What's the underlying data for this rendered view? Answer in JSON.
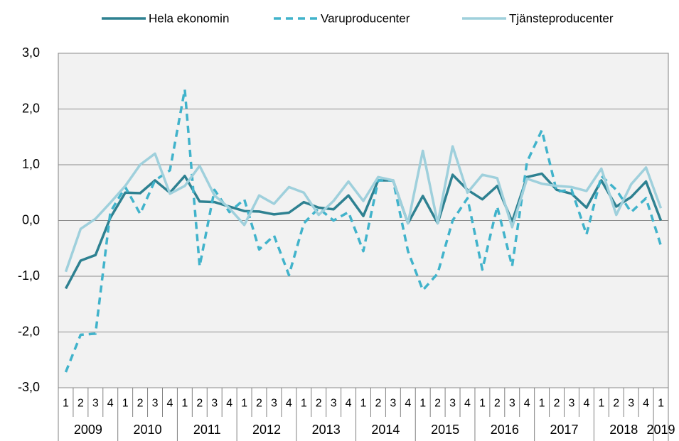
{
  "chart_data": {
    "type": "line",
    "categories": [
      "1",
      "2",
      "3",
      "4",
      "1",
      "2",
      "3",
      "4",
      "1",
      "2",
      "3",
      "4",
      "1",
      "2",
      "3",
      "4",
      "1",
      "2",
      "3",
      "4",
      "1",
      "2",
      "3",
      "4",
      "1",
      "2",
      "3",
      "4",
      "1",
      "2",
      "3",
      "4",
      "1",
      "2",
      "3",
      "4",
      "1",
      "2",
      "3",
      "4",
      "1"
    ],
    "years": [
      "2009",
      "2010",
      "2011",
      "2012",
      "2013",
      "2014",
      "2015",
      "2016",
      "2017",
      "2018",
      "2019"
    ],
    "series": [
      {
        "name": "Hela ekonomin",
        "color": "#2e8191",
        "dash": false,
        "values": [
          -1.22,
          -0.72,
          -0.62,
          0.05,
          0.5,
          0.49,
          0.72,
          0.5,
          0.8,
          0.34,
          0.33,
          0.25,
          0.17,
          0.16,
          0.11,
          0.14,
          0.33,
          0.23,
          0.2,
          0.45,
          0.08,
          0.72,
          0.72,
          -0.05,
          0.44,
          -0.05,
          0.82,
          0.55,
          0.38,
          0.62,
          -0.02,
          0.78,
          0.84,
          0.55,
          0.48,
          0.23,
          0.72,
          0.25,
          0.42,
          0.7,
          0.0
        ]
      },
      {
        "name": "Varuproducenter",
        "color": "#41b3cb",
        "dash": true,
        "values": [
          -2.72,
          -2.05,
          -2.03,
          0.15,
          0.6,
          0.12,
          0.72,
          0.9,
          2.35,
          -0.82,
          0.55,
          0.15,
          0.38,
          -0.52,
          -0.27,
          -0.98,
          -0.05,
          0.22,
          0.0,
          0.15,
          -0.55,
          0.72,
          0.72,
          -0.55,
          -1.25,
          -0.95,
          0.0,
          0.4,
          -0.88,
          0.25,
          -0.82,
          1.05,
          1.62,
          0.52,
          0.55,
          -0.25,
          0.8,
          0.55,
          0.15,
          0.4,
          -0.45
        ]
      },
      {
        "name": "Tjänsteproducenter",
        "color": "#9fd0dc",
        "dash": false,
        "values": [
          -0.92,
          -0.15,
          0.03,
          0.32,
          0.62,
          1.0,
          1.2,
          0.48,
          0.62,
          0.98,
          0.45,
          0.22,
          -0.08,
          0.45,
          0.3,
          0.6,
          0.5,
          0.1,
          0.35,
          0.7,
          0.35,
          0.78,
          0.72,
          -0.05,
          1.25,
          -0.05,
          1.33,
          0.5,
          0.82,
          0.76,
          -0.12,
          0.75,
          0.66,
          0.62,
          0.6,
          0.53,
          0.93,
          0.1,
          0.65,
          0.95,
          0.22
        ]
      }
    ],
    "ylim": [
      -3,
      3
    ],
    "yticks": [
      {
        "value": -3,
        "label": "-3,0"
      },
      {
        "value": -2,
        "label": "-2,0"
      },
      {
        "value": -1,
        "label": "-1,0"
      },
      {
        "value": 0,
        "label": "0,0"
      },
      {
        "value": 1,
        "label": "1,0"
      },
      {
        "value": 2,
        "label": "2,0"
      },
      {
        "value": 3,
        "label": "3,0"
      }
    ],
    "grid": true,
    "legend": "top"
  }
}
